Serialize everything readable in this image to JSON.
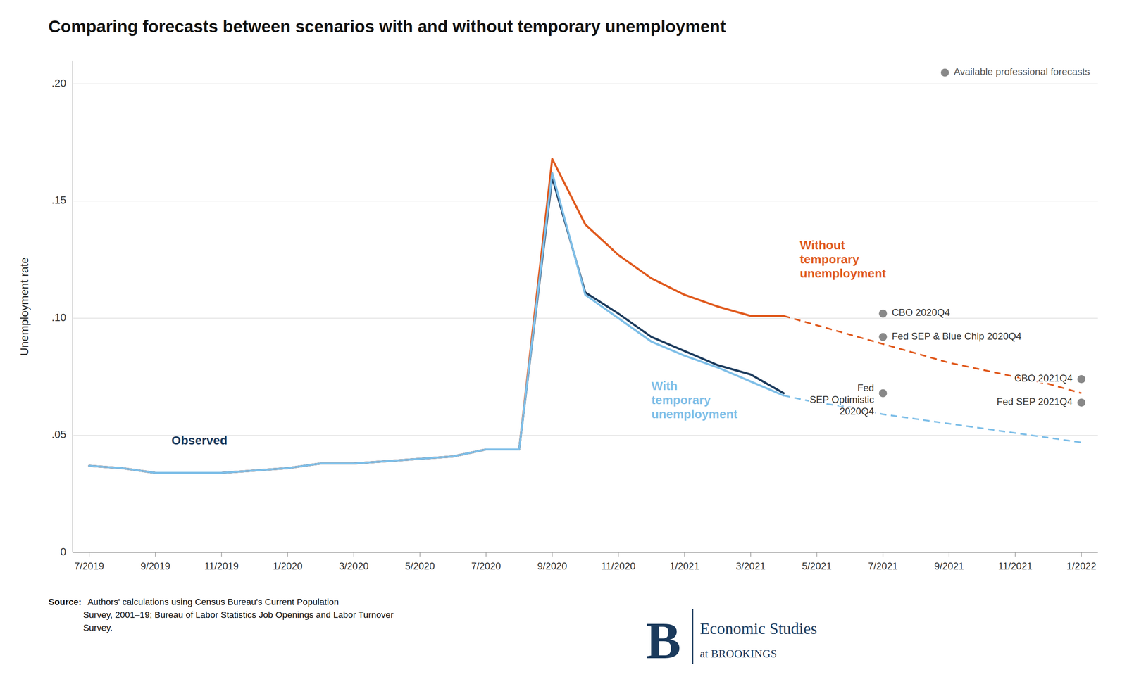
{
  "chart_data": {
    "type": "line",
    "title": "Comparing forecasts between scenarios with and without temporary unemployment",
    "ylabel": "Unemployment rate",
    "source_label": "Source:",
    "source": "  Authors' calculations using Census Bureau's Current Population\nSurvey, 2001–19; Bureau of Labor Statistics Job Openings and Labor Turnover\nSurvey.",
    "logo": {
      "mark": "B",
      "name": "Economic Studies",
      "sub": "at BROOKINGS"
    },
    "categories": [
      "7/2019",
      null,
      "9/2019",
      null,
      "11/2019",
      null,
      "1/2020",
      null,
      "3/2020",
      null,
      "5/2020",
      null,
      "7/2020",
      null,
      "9/2020",
      null,
      "11/2020",
      null,
      "1/2021",
      null,
      "3/2021",
      null,
      "5/2021",
      null,
      "7/2021",
      null,
      "9/2021",
      null,
      "11/2021",
      null,
      "1/2022"
    ],
    "series": [
      {
        "name": "Observed",
        "color": "#1b3a5c",
        "line_style": "solid",
        "values": [
          0.037,
          0.036,
          0.034,
          0.034,
          0.034,
          0.035,
          0.036,
          0.038,
          0.038,
          0.039,
          0.04,
          0.041,
          0.044,
          0.044,
          0.16,
          0.111,
          0.102,
          0.092,
          0.086,
          0.08,
          0.076,
          0.068,
          null,
          null,
          null,
          null,
          null,
          null,
          null,
          null,
          null
        ]
      },
      {
        "name": "Without\ntemporary\nunemployment",
        "color": "#e05a1e",
        "line_style": "solid",
        "values": [
          0.037,
          0.036,
          0.034,
          0.034,
          0.034,
          0.035,
          0.036,
          0.038,
          0.038,
          0.039,
          0.04,
          0.041,
          0.044,
          0.044,
          0.168,
          0.14,
          0.127,
          0.117,
          0.11,
          0.105,
          0.101,
          0.101,
          null,
          null,
          null,
          null,
          null,
          null,
          null,
          null,
          null
        ]
      },
      {
        "color": "#e05a1e",
        "line_style": "dashed",
        "values": [
          null,
          null,
          null,
          null,
          null,
          null,
          null,
          null,
          null,
          null,
          null,
          null,
          null,
          null,
          null,
          null,
          null,
          null,
          null,
          null,
          null,
          0.101,
          0.097,
          0.093,
          0.089,
          0.085,
          0.081,
          0.078,
          0.075,
          0.072,
          0.068
        ]
      },
      {
        "name": "With\ntemporary\nunemployment",
        "color": "#7fbfe8",
        "line_style": "solid",
        "values": [
          0.037,
          0.036,
          0.034,
          0.034,
          0.034,
          0.035,
          0.036,
          0.038,
          0.038,
          0.039,
          0.04,
          0.041,
          0.044,
          0.044,
          0.162,
          0.11,
          0.1,
          0.09,
          0.084,
          0.079,
          0.073,
          0.067,
          null,
          null,
          null,
          null,
          null,
          null,
          null,
          null,
          null
        ]
      },
      {
        "color": "#7fbfe8",
        "line_style": "dashed",
        "values": [
          null,
          null,
          null,
          null,
          null,
          null,
          null,
          null,
          null,
          null,
          null,
          null,
          null,
          null,
          null,
          null,
          null,
          null,
          null,
          null,
          null,
          0.067,
          0.064,
          0.062,
          0.059,
          0.057,
          0.055,
          0.053,
          0.051,
          0.049,
          0.047
        ]
      },
      {
        "name": "Available professional forecasts",
        "type": "scatter",
        "color": "#888888",
        "marker": "circle",
        "x": [
          "7/2021",
          "7/2021",
          "7/2021",
          "1/2022",
          "1/2022"
        ],
        "values": [
          0.102,
          0.092,
          0.068,
          0.074,
          0.064
        ],
        "labels": [
          "CBO 2020Q4",
          "Fed SEP & Blue Chip 2020Q4",
          "Fed\nSEP Optimistic\n2020Q4",
          "CBO 2021Q4",
          "Fed SEP 2021Q4"
        ]
      }
    ],
    "ylim": [
      0,
      0.21
    ],
    "yticks": [
      0,
      {
        "value": 0.05,
        "label": ".05"
      },
      {
        "value": 0.1,
        "label": ".10"
      },
      {
        "value": 0.15,
        "label": ".15"
      },
      {
        "value": 0.2,
        "label": ".20"
      }
    ],
    "grid": true,
    "legend": "upper right"
  }
}
